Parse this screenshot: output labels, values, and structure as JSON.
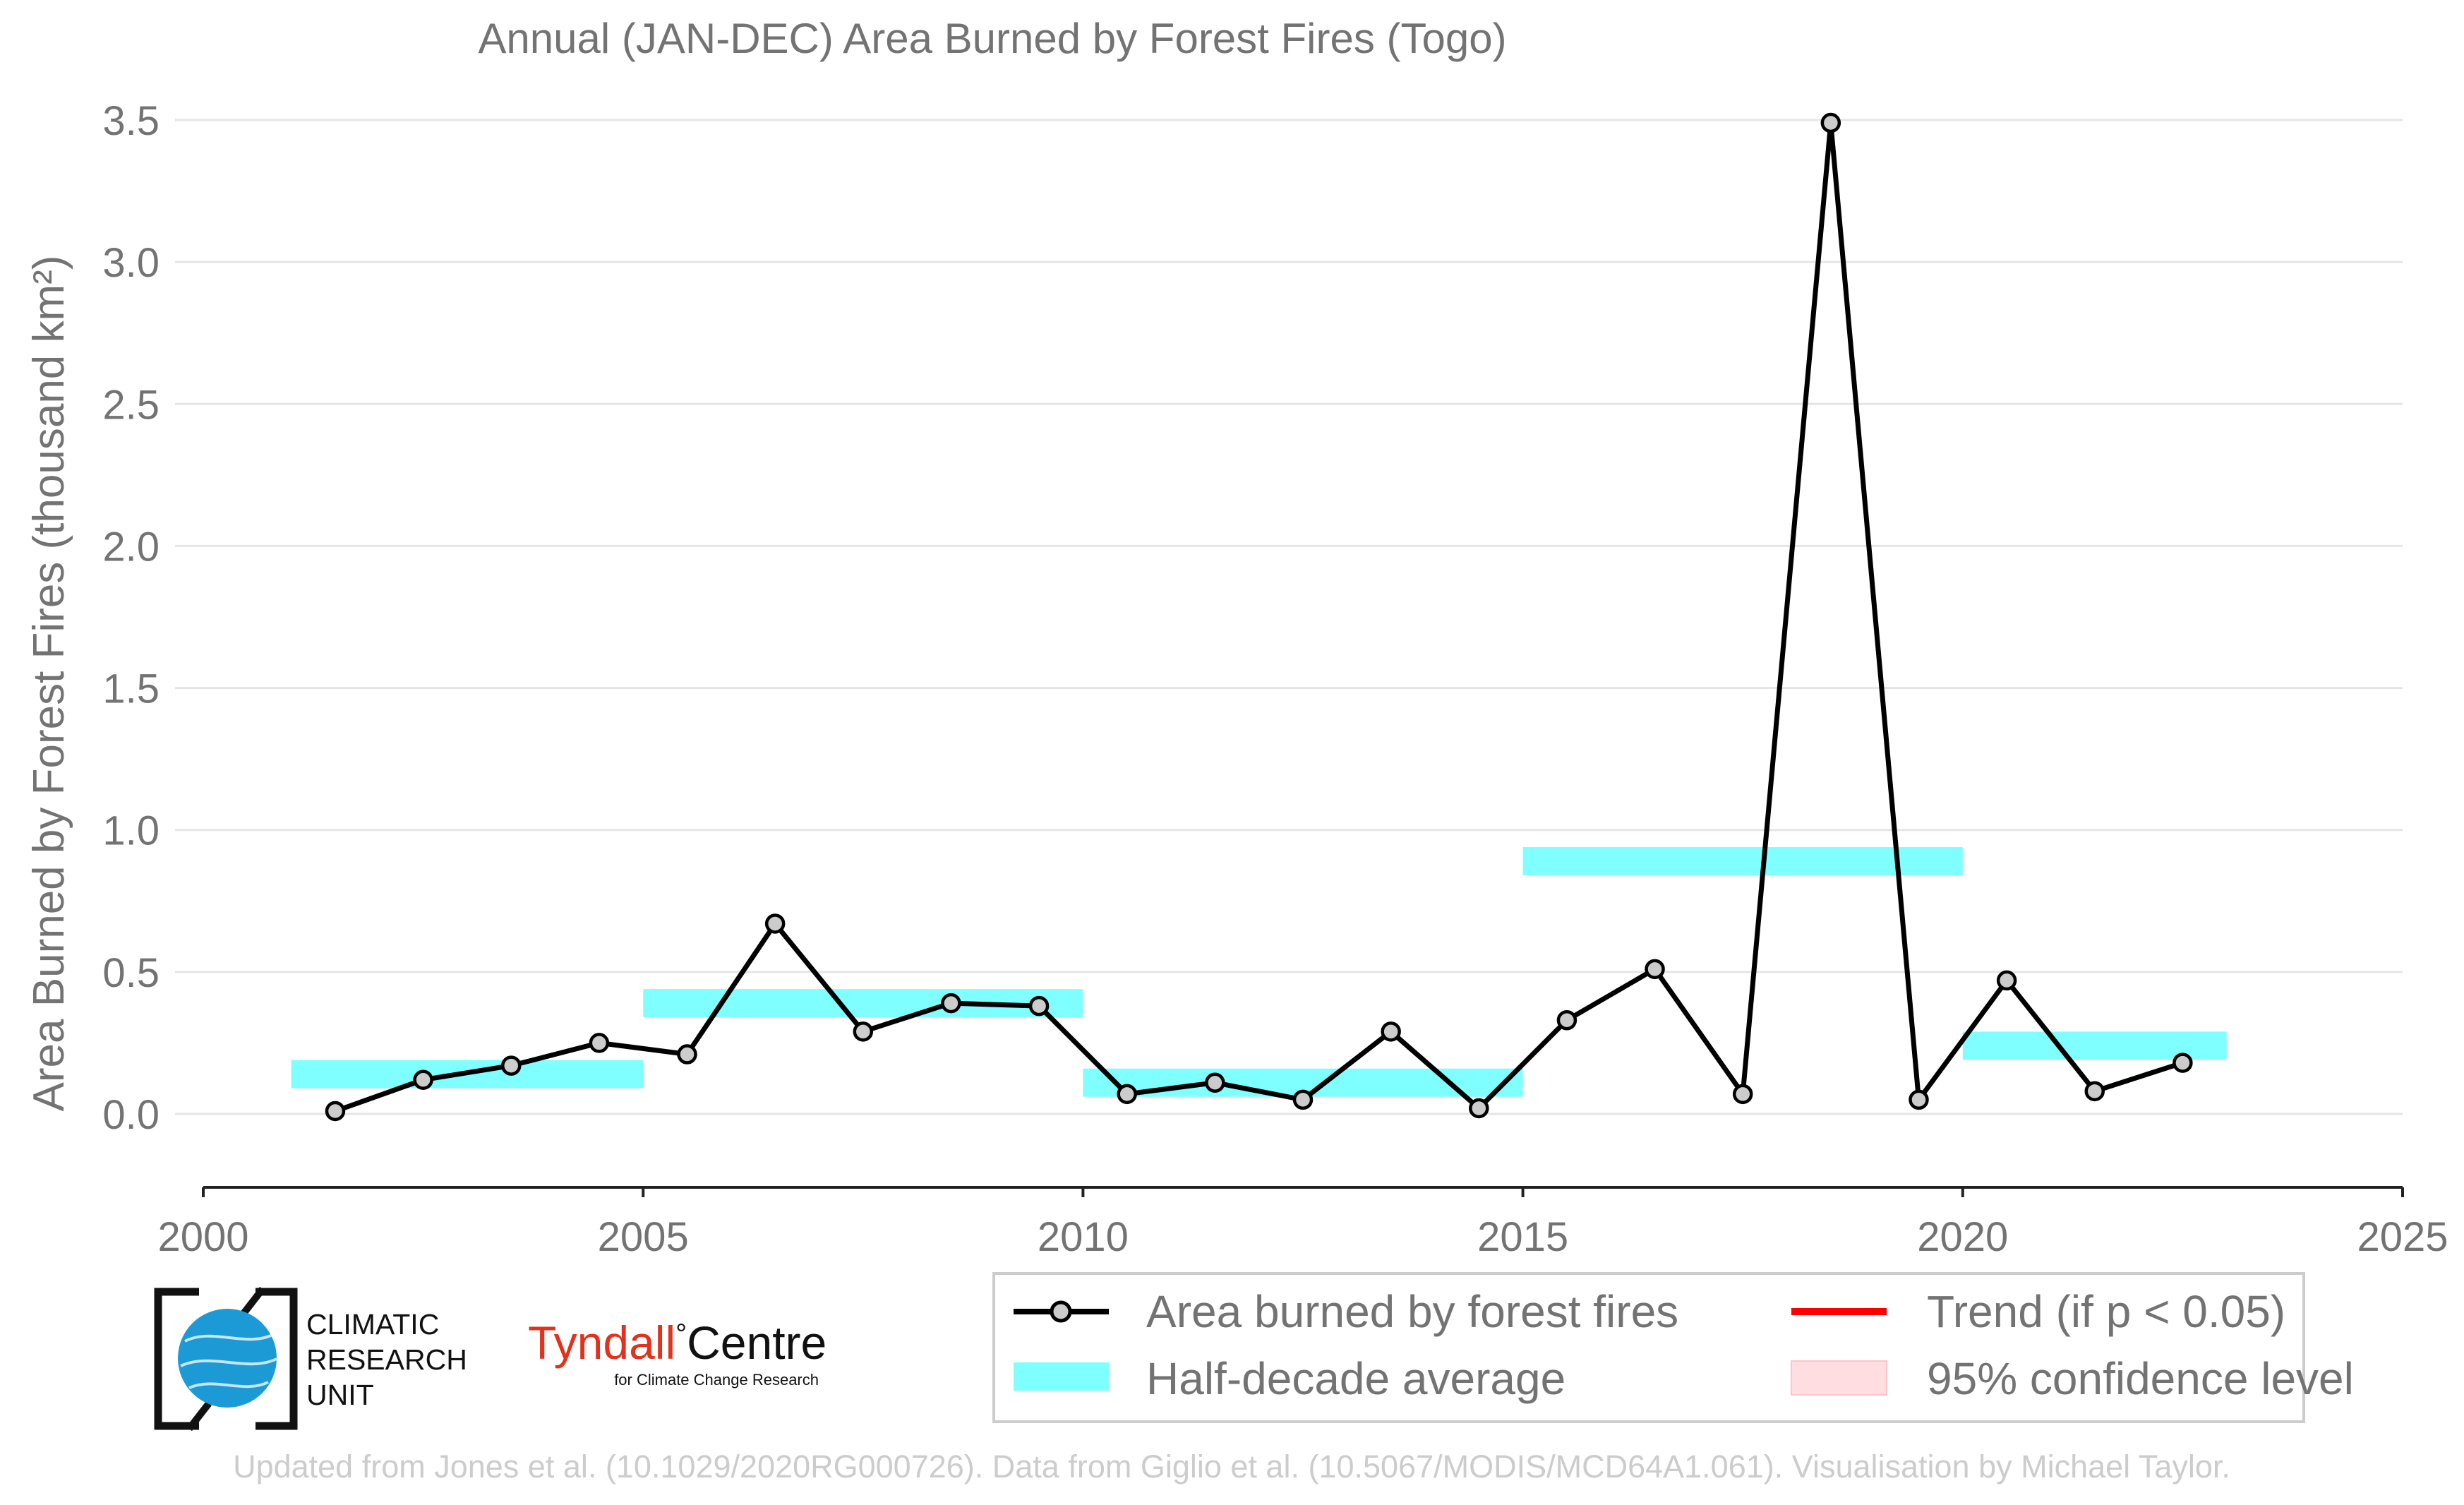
{
  "chart_data": {
    "type": "line",
    "title": "Annual (JAN-DEC) Area Burned by Forest Fires (Togo)",
    "ylabel": "Area Burned by Forest Fires (thousand km²)",
    "xlabel": "",
    "xlim": [
      2000,
      2025
    ],
    "ylim": [
      -0.25,
      3.55
    ],
    "xticks": [
      2000,
      2005,
      2010,
      2015,
      2020,
      2025
    ],
    "xtick_labels": [
      "2000",
      "2005",
      "2010",
      "2015",
      "2020",
      "2025"
    ],
    "yticks": [
      0.0,
      0.5,
      1.0,
      1.5,
      2.0,
      2.5,
      3.0,
      3.5
    ],
    "ytick_labels": [
      "0.0",
      "0.5",
      "1.0",
      "1.5",
      "2.0",
      "2.5",
      "3.0",
      "3.5"
    ],
    "grid": true,
    "series": [
      {
        "name": "Area burned by forest fires",
        "color": "#000000",
        "marker_fill": "#cccccc",
        "x": [
          2001.5,
          2002.5,
          2003.5,
          2004.5,
          2005.5,
          2006.5,
          2007.5,
          2008.5,
          2009.5,
          2010.5,
          2011.5,
          2012.5,
          2013.5,
          2014.5,
          2015.5,
          2016.5,
          2017.5,
          2018.5,
          2019.5,
          2020.5,
          2021.5,
          2022.5
        ],
        "y": [
          0.01,
          0.12,
          0.17,
          0.25,
          0.21,
          0.67,
          0.29,
          0.39,
          0.38,
          0.07,
          0.11,
          0.05,
          0.29,
          0.02,
          0.33,
          0.51,
          0.07,
          3.49,
          0.05,
          0.47,
          0.08,
          0.18
        ]
      }
    ],
    "half_decade_average": {
      "name": "Half-decade average",
      "color": "#7fffff",
      "segments": [
        {
          "x0": 2001,
          "x1": 2005,
          "y": 0.14
        },
        {
          "x0": 2005,
          "x1": 2010,
          "y": 0.39
        },
        {
          "x0": 2010,
          "x1": 2015,
          "y": 0.11
        },
        {
          "x0": 2015,
          "x1": 2020,
          "y": 0.89
        },
        {
          "x0": 2020,
          "x1": 2023,
          "y": 0.24
        }
      ]
    },
    "legend": {
      "placement": "bottom-right",
      "entries": [
        {
          "label": "Area burned by forest fires",
          "kind": "line-marker",
          "color": "#000000"
        },
        {
          "label": "Trend (if p < 0.05)",
          "kind": "line",
          "color": "#ff0000"
        },
        {
          "label": "Half-decade average",
          "kind": "patch",
          "color": "#7fffff"
        },
        {
          "label": "95% confidence level",
          "kind": "patch",
          "color": "#ffdde0"
        }
      ]
    }
  },
  "logos": {
    "cru": {
      "lines": [
        "CLIMATIC",
        "RESEARCH",
        "UNIT"
      ],
      "globe_color": "#1c9ad6"
    },
    "tyndall": {
      "name_part1": "Tyndall",
      "degree": "°",
      "name_part2": "Centre",
      "subtitle": "for Climate Change Research",
      "red": "#e2321c"
    }
  },
  "credit": "Updated from Jones et al. (10.1029/2020RG000726). Data from Giglio et al. (10.5067/MODIS/MCD64A1.061). Visualisation by Michael Taylor."
}
